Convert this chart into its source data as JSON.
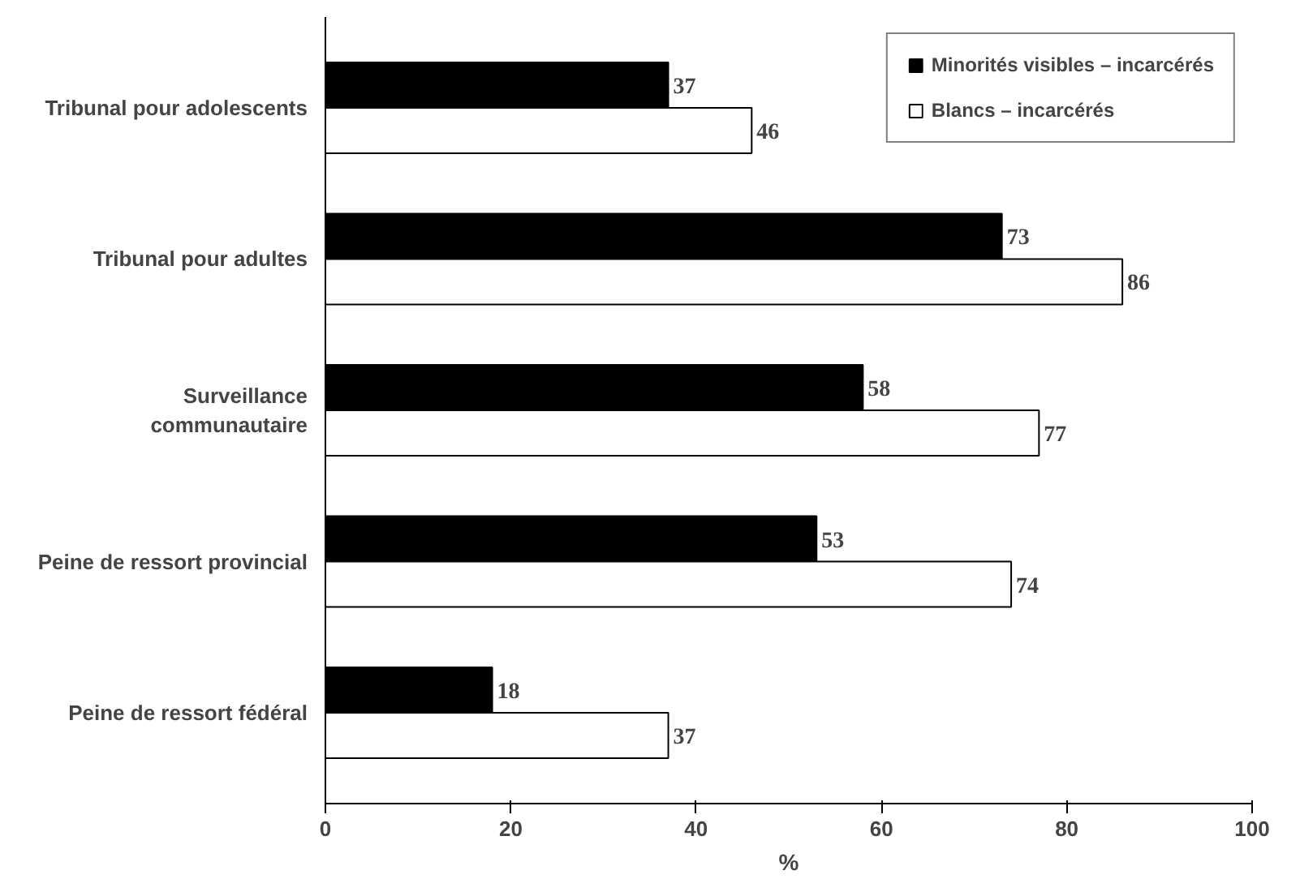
{
  "chart_data": {
    "type": "bar",
    "orientation": "horizontal",
    "xlabel": "%",
    "categories": [
      "Tribunal pour adolescents",
      "Tribunal pour adultes",
      "Surveillance\ncommunautaire",
      "Peine de ressort provincial",
      "Peine de ressort fédéral"
    ],
    "series": [
      {
        "name": "Minorités visibles – incarcérés",
        "color": "#000000",
        "values": [
          37,
          73,
          58,
          53,
          18
        ]
      },
      {
        "name": "Blancs – incarcérés",
        "color": "#ffffff",
        "values": [
          46,
          86,
          77,
          74,
          37
        ]
      }
    ],
    "xlim": [
      0,
      100
    ],
    "xticks": [
      0,
      20,
      40,
      60,
      80,
      100
    ],
    "data_labels": true,
    "grid": false,
    "legend": "top right"
  }
}
